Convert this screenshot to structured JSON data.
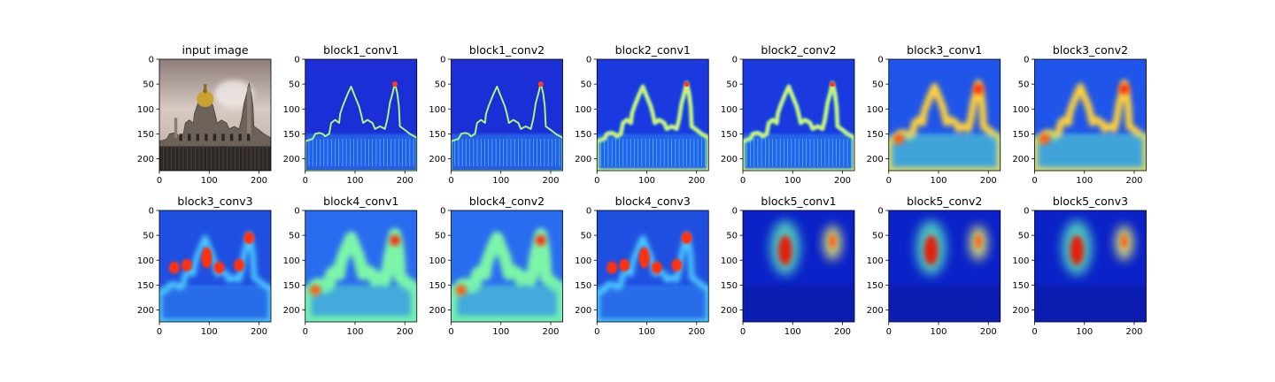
{
  "chart_data": [
    {
      "type": "heatmap",
      "title": "input image",
      "image": "photograph",
      "xticks": [
        0,
        100,
        200
      ],
      "yticks": [
        0,
        50,
        100,
        150,
        200
      ],
      "xlim": [
        0,
        224
      ],
      "ylim": [
        224,
        0
      ]
    },
    {
      "type": "heatmap",
      "title": "block1_conv1",
      "image": "activation",
      "colormap": "jet",
      "pattern": "edges",
      "xticks": [
        0,
        100,
        200
      ],
      "yticks": [
        0,
        50,
        100,
        150,
        200
      ],
      "xlim": [
        0,
        224
      ],
      "ylim": [
        224,
        0
      ]
    },
    {
      "type": "heatmap",
      "title": "block1_conv2",
      "image": "activation",
      "colormap": "jet",
      "pattern": "edges",
      "xticks": [
        0,
        100,
        200
      ],
      "yticks": [
        0,
        50,
        100,
        150,
        200
      ],
      "xlim": [
        0,
        224
      ],
      "ylim": [
        224,
        0
      ]
    },
    {
      "type": "heatmap",
      "title": "block2_conv1",
      "image": "activation",
      "colormap": "jet",
      "pattern": "edges-thick",
      "xticks": [
        0,
        100,
        200
      ],
      "yticks": [
        0,
        50,
        100,
        150,
        200
      ],
      "xlim": [
        0,
        224
      ],
      "ylim": [
        224,
        0
      ]
    },
    {
      "type": "heatmap",
      "title": "block2_conv2",
      "image": "activation",
      "colormap": "jet",
      "pattern": "edges-thick",
      "xticks": [
        0,
        100,
        200
      ],
      "yticks": [
        0,
        50,
        100,
        150,
        200
      ],
      "xlim": [
        0,
        224
      ],
      "ylim": [
        224,
        0
      ]
    },
    {
      "type": "heatmap",
      "title": "block3_conv1",
      "image": "activation",
      "colormap": "jet",
      "pattern": "blurred",
      "xticks": [
        0,
        100,
        200
      ],
      "yticks": [
        0,
        50,
        100,
        150,
        200
      ],
      "xlim": [
        0,
        224
      ],
      "ylim": [
        224,
        0
      ]
    },
    {
      "type": "heatmap",
      "title": "block3_conv2",
      "image": "activation",
      "colormap": "jet",
      "pattern": "blurred",
      "xticks": [
        0,
        100,
        200
      ],
      "yticks": [
        0,
        50,
        100,
        150,
        200
      ],
      "xlim": [
        0,
        224
      ],
      "ylim": [
        224,
        0
      ]
    },
    {
      "type": "heatmap",
      "title": "block3_conv3",
      "image": "activation",
      "colormap": "jet",
      "pattern": "spots",
      "xticks": [
        0,
        100,
        200
      ],
      "yticks": [
        0,
        50,
        100,
        150,
        200
      ],
      "xlim": [
        0,
        224
      ],
      "ylim": [
        224,
        0
      ]
    },
    {
      "type": "heatmap",
      "title": "block4_conv1",
      "image": "activation",
      "colormap": "jet",
      "pattern": "diffuse",
      "xticks": [
        0,
        100,
        200
      ],
      "yticks": [
        0,
        50,
        100,
        150,
        200
      ],
      "xlim": [
        0,
        224
      ],
      "ylim": [
        224,
        0
      ]
    },
    {
      "type": "heatmap",
      "title": "block4_conv2",
      "image": "activation",
      "colormap": "jet",
      "pattern": "diffuse",
      "xticks": [
        0,
        100,
        200
      ],
      "yticks": [
        0,
        50,
        100,
        150,
        200
      ],
      "xlim": [
        0,
        224
      ],
      "ylim": [
        224,
        0
      ]
    },
    {
      "type": "heatmap",
      "title": "block4_conv3",
      "image": "activation",
      "colormap": "jet",
      "pattern": "spots",
      "xticks": [
        0,
        100,
        200
      ],
      "yticks": [
        0,
        50,
        100,
        150,
        200
      ],
      "xlim": [
        0,
        224
      ],
      "ylim": [
        224,
        0
      ]
    },
    {
      "type": "heatmap",
      "title": "block5_conv1",
      "image": "activation",
      "colormap": "jet",
      "pattern": "blobs",
      "xticks": [
        0,
        100,
        200
      ],
      "yticks": [
        0,
        50,
        100,
        150,
        200
      ],
      "xlim": [
        0,
        224
      ],
      "ylim": [
        224,
        0
      ]
    },
    {
      "type": "heatmap",
      "title": "block5_conv2",
      "image": "activation",
      "colormap": "jet",
      "pattern": "blobs",
      "xticks": [
        0,
        100,
        200
      ],
      "yticks": [
        0,
        50,
        100,
        150,
        200
      ],
      "xlim": [
        0,
        224
      ],
      "ylim": [
        224,
        0
      ]
    },
    {
      "type": "heatmap",
      "title": "block5_conv3",
      "image": "activation",
      "colormap": "jet",
      "pattern": "blobs",
      "xticks": [
        0,
        100,
        200
      ],
      "yticks": [
        0,
        50,
        100,
        150,
        200
      ],
      "xlim": [
        0,
        224
      ],
      "ylim": [
        224,
        0
      ]
    }
  ]
}
